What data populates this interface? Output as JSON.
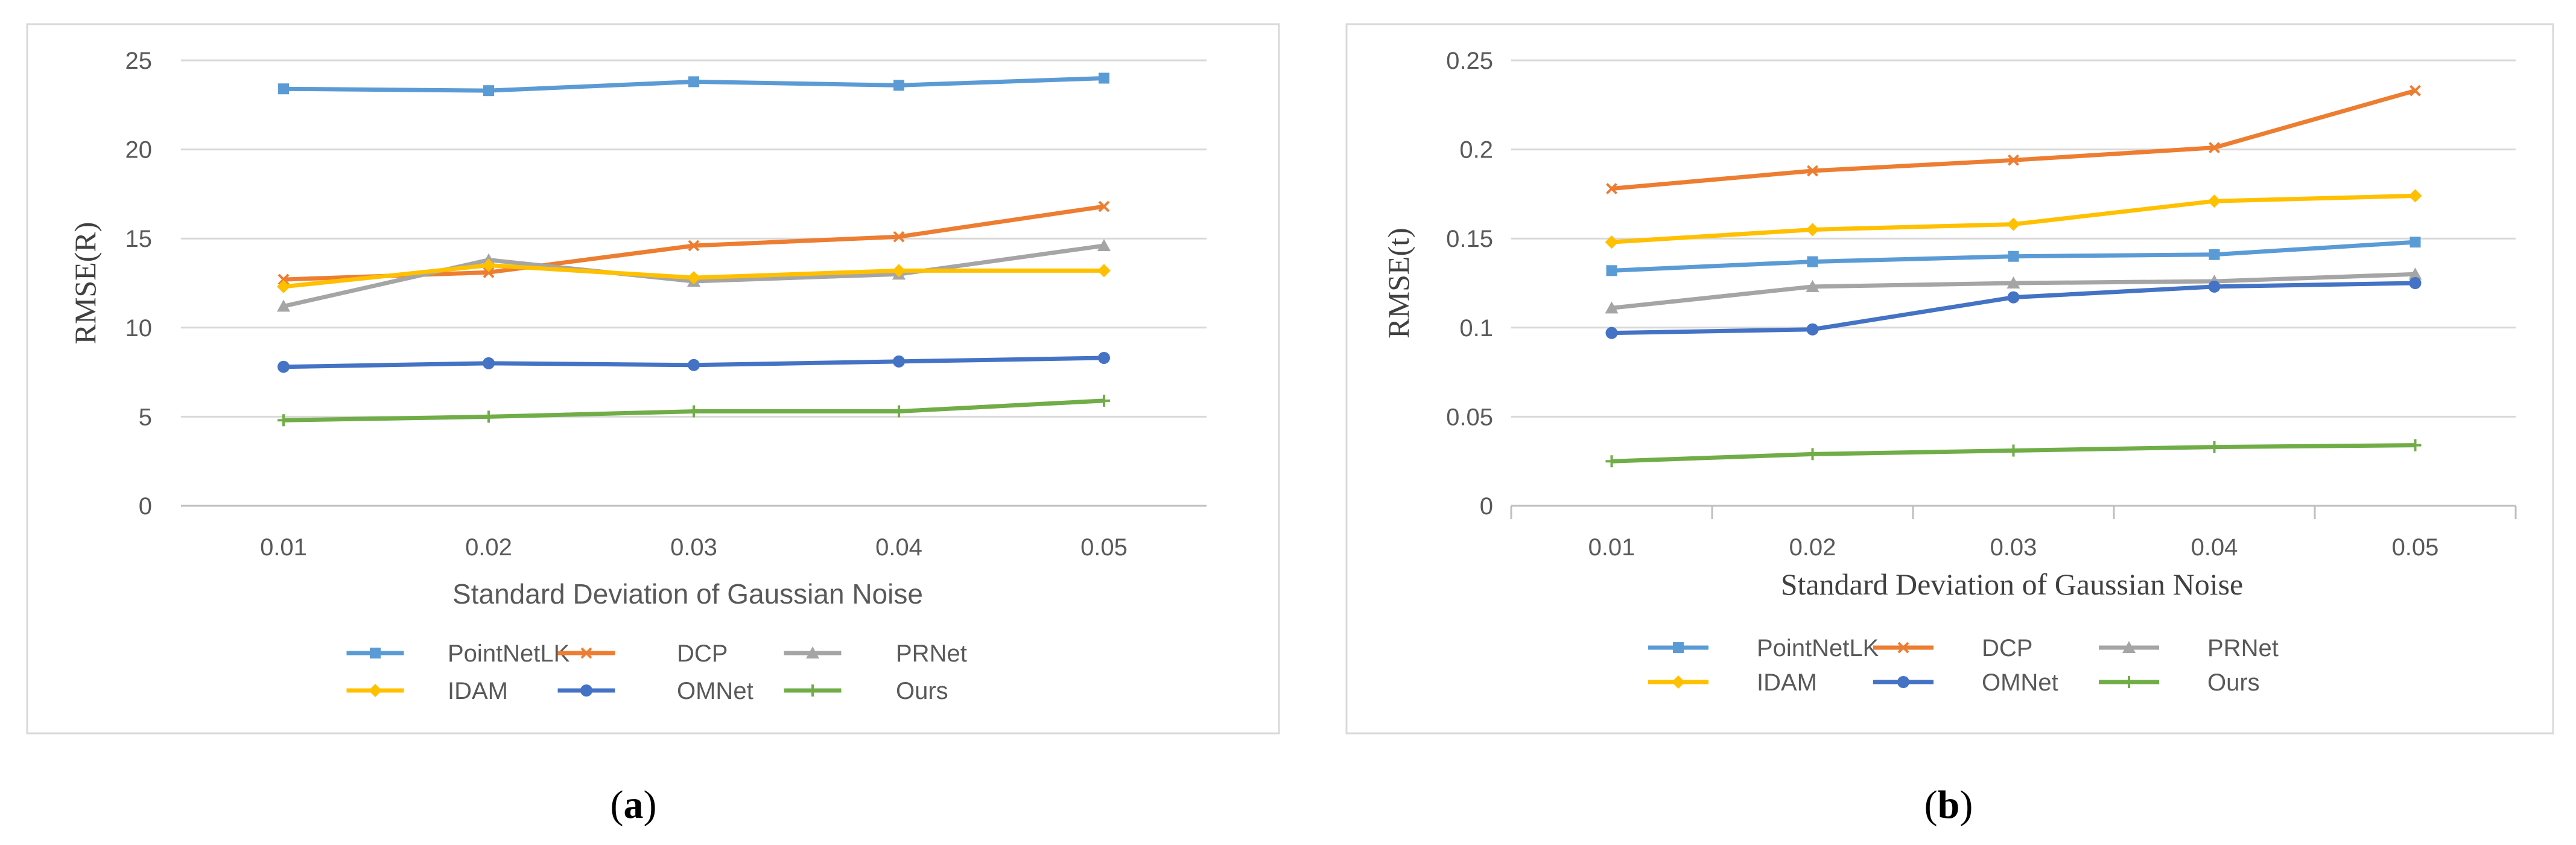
{
  "chart_data": [
    {
      "type": "line",
      "caption_letter": "a",
      "xlabel": "Standard Deviation of Gaussian Noise",
      "ylabel": "RMSE(R)",
      "categories": [
        "0.01",
        "0.02",
        "0.03",
        "0.04",
        "0.05"
      ],
      "ylim": [
        0,
        25
      ],
      "yticks": [
        0,
        5,
        10,
        15,
        20,
        25
      ],
      "ytick_labels": [
        "0",
        "5",
        "10",
        "15",
        "20",
        "25"
      ],
      "grid": true,
      "legend_position": "bottom",
      "series": [
        {
          "name": "PointNetLK",
          "values": [
            23.4,
            23.3,
            23.8,
            23.6,
            24.0
          ]
        },
        {
          "name": "DCP",
          "values": [
            12.7,
            13.1,
            14.6,
            15.1,
            16.8
          ]
        },
        {
          "name": "PRNet",
          "values": [
            11.2,
            13.8,
            12.6,
            13.0,
            14.6
          ]
        },
        {
          "name": "IDAM",
          "values": [
            12.3,
            13.5,
            12.8,
            13.2,
            13.2
          ]
        },
        {
          "name": "OMNet",
          "values": [
            7.8,
            8.0,
            7.9,
            8.1,
            8.3
          ]
        },
        {
          "name": "Ours",
          "values": [
            4.8,
            5.0,
            5.3,
            5.3,
            5.9
          ]
        }
      ]
    },
    {
      "type": "line",
      "caption_letter": "b",
      "xlabel": "Standard Deviation of Gaussian Noise",
      "ylabel": "RMSE(t)",
      "categories": [
        "0.01",
        "0.02",
        "0.03",
        "0.04",
        "0.05"
      ],
      "ylim": [
        0,
        0.25
      ],
      "yticks": [
        0,
        0.05,
        0.1,
        0.15,
        0.2,
        0.25
      ],
      "ytick_labels": [
        "0",
        "0.05",
        "0.1",
        "0.15",
        "0.2",
        "0.25"
      ],
      "grid": true,
      "legend_position": "bottom",
      "series": [
        {
          "name": "PointNetLK",
          "values": [
            0.132,
            0.137,
            0.14,
            0.141,
            0.148
          ]
        },
        {
          "name": "DCP",
          "values": [
            0.178,
            0.188,
            0.194,
            0.201,
            0.233
          ]
        },
        {
          "name": "PRNet",
          "values": [
            0.111,
            0.123,
            0.125,
            0.126,
            0.13
          ]
        },
        {
          "name": "IDAM",
          "values": [
            0.148,
            0.155,
            0.158,
            0.171,
            0.174
          ]
        },
        {
          "name": "OMNet",
          "values": [
            0.097,
            0.099,
            0.117,
            0.123,
            0.125
          ]
        },
        {
          "name": "Ours",
          "values": [
            0.025,
            0.029,
            0.031,
            0.033,
            0.034
          ]
        }
      ]
    }
  ],
  "series_styles": {
    "PointNetLK": {
      "color": "#5B9BD5",
      "marker": "square"
    },
    "DCP": {
      "color": "#ED7D31",
      "marker": "x"
    },
    "PRNet": {
      "color": "#A5A5A5",
      "marker": "triangle"
    },
    "IDAM": {
      "color": "#FFC000",
      "marker": "diamond"
    },
    "OMNet": {
      "color": "#4472C4",
      "marker": "circle"
    },
    "Ours": {
      "color": "#70AD47",
      "marker": "plus"
    }
  },
  "colors": {
    "grid": "#D9D9D9",
    "frame": "#D9D9D9",
    "axis": "#BFBFBF"
  }
}
